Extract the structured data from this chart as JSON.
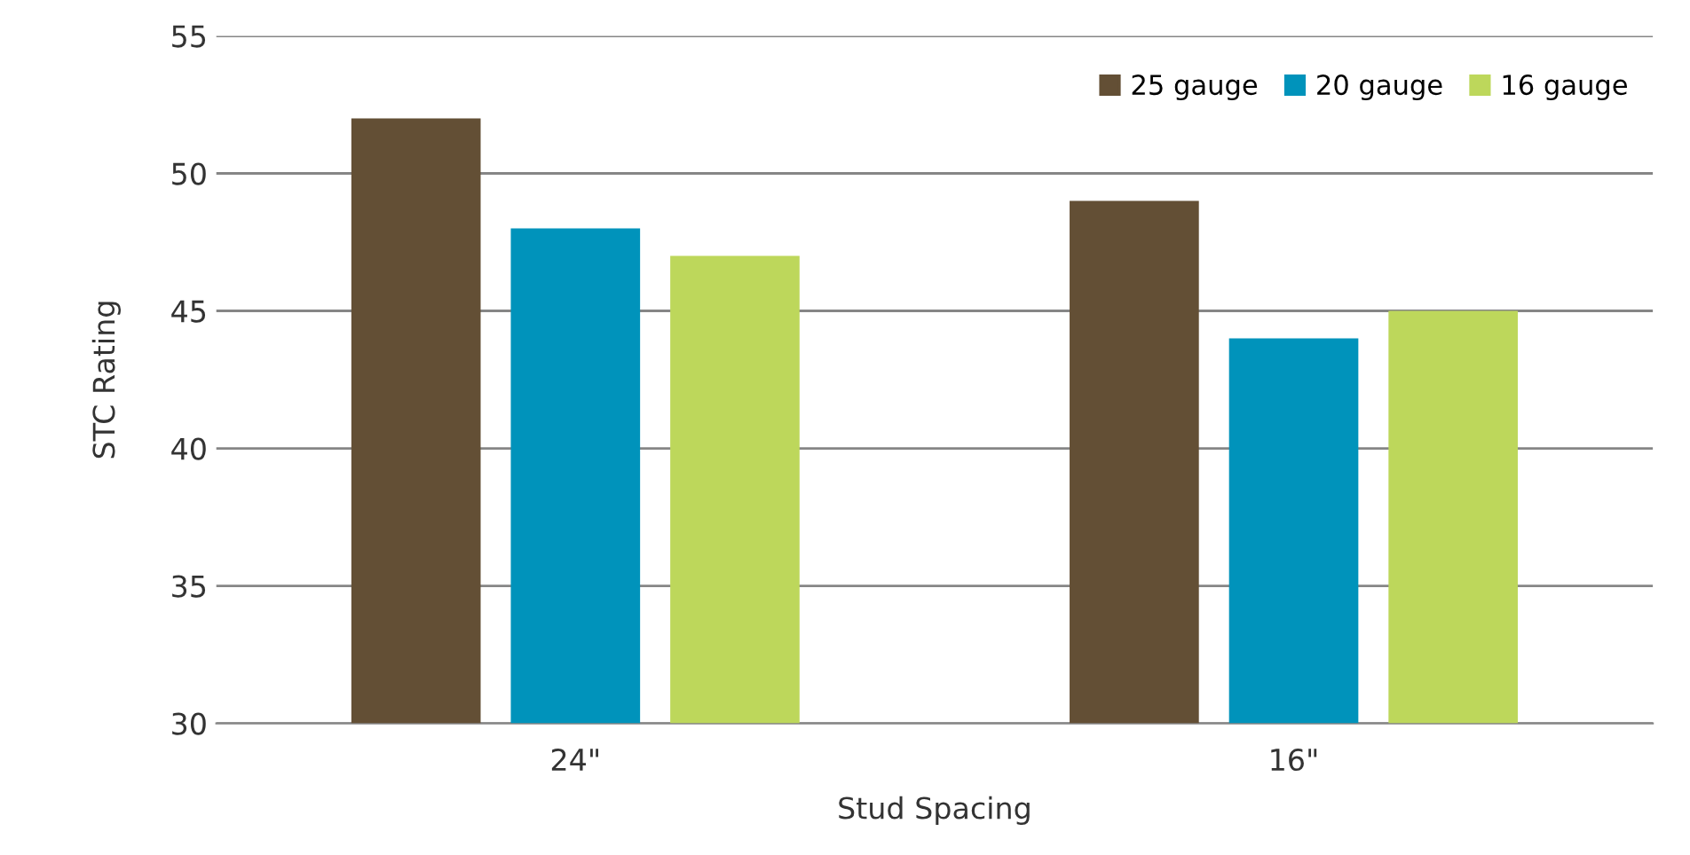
{
  "chart_data": {
    "type": "bar",
    "xlabel": "Stud Spacing",
    "ylabel": "STC Rating",
    "categories": [
      "24\"",
      "16\""
    ],
    "series": [
      {
        "name": "25 gauge",
        "color": "#634f35",
        "values": [
          52,
          49
        ]
      },
      {
        "name": "20 gauge",
        "color": "#0093bb",
        "values": [
          48,
          44
        ]
      },
      {
        "name": "16 gauge",
        "color": "#bdd75b",
        "values": [
          47,
          45
        ]
      }
    ],
    "ylim": [
      30,
      55
    ],
    "yticks": [
      30,
      35,
      40,
      45,
      50,
      55
    ],
    "grid": "y",
    "legend": "top right"
  }
}
